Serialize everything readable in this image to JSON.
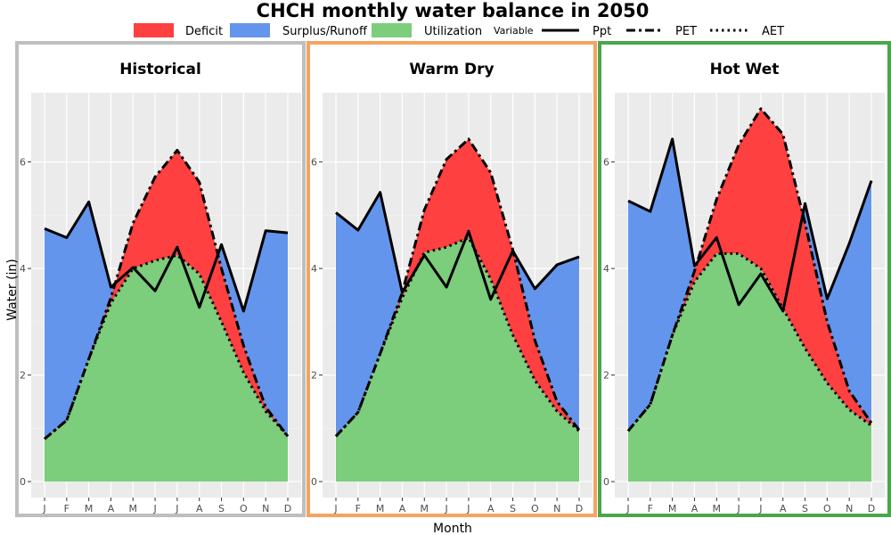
{
  "chart_data": {
    "type": "area",
    "title": "CHCH monthly water balance in 2050",
    "xlabel": "Month",
    "ylabel": "Water (in)",
    "ylim": [
      -0.3,
      7.3
    ],
    "yticks": [
      0,
      2,
      4,
      6
    ],
    "months": [
      "J",
      "F",
      "M",
      "A",
      "M",
      "J",
      "J",
      "A",
      "S",
      "O",
      "N",
      "D"
    ],
    "legend": {
      "fills": [
        {
          "label": "Deficit",
          "color": "#ff4040"
        },
        {
          "label": "Surplus/Runoff",
          "color": "#6495ed"
        },
        {
          "label": "Utilization",
          "color": "#7ccd7c"
        }
      ],
      "variable_title": "Variable",
      "lines": [
        {
          "label": "Ppt",
          "dash": "solid"
        },
        {
          "label": "PET",
          "dash": "dashdot"
        },
        {
          "label": "AET",
          "dash": "dotted"
        }
      ]
    },
    "panels": [
      {
        "name": "Historical",
        "border_color": "#bebebe",
        "ppt": [
          4.75,
          4.58,
          5.25,
          3.65,
          4.02,
          3.58,
          4.4,
          3.27,
          4.45,
          3.2,
          4.71,
          4.67
        ],
        "pet": [
          0.8,
          1.15,
          2.3,
          3.45,
          4.85,
          5.72,
          6.22,
          5.62,
          4.0,
          2.55,
          1.4,
          0.85
        ],
        "aet": [
          0.8,
          1.15,
          2.3,
          3.35,
          4.0,
          4.15,
          4.25,
          3.9,
          3.0,
          2.05,
          1.32,
          0.85
        ]
      },
      {
        "name": "Warm Dry",
        "border_color": "#f4a460",
        "ppt": [
          5.05,
          4.72,
          5.43,
          3.55,
          4.25,
          3.65,
          4.7,
          3.42,
          4.33,
          3.62,
          4.07,
          4.22
        ],
        "pet": [
          0.85,
          1.3,
          2.4,
          3.55,
          5.1,
          6.05,
          6.43,
          5.8,
          4.35,
          2.65,
          1.5,
          0.97
        ],
        "aet": [
          0.85,
          1.3,
          2.4,
          3.45,
          4.3,
          4.4,
          4.58,
          3.8,
          2.75,
          1.9,
          1.32,
          0.95
        ]
      },
      {
        "name": "Hot Wet",
        "border_color": "#4aa64a",
        "ppt": [
          5.27,
          5.07,
          6.43,
          4.05,
          4.58,
          3.32,
          3.9,
          3.2,
          5.22,
          3.43,
          4.47,
          5.65
        ],
        "pet": [
          0.95,
          1.45,
          2.75,
          3.95,
          5.3,
          6.32,
          7.0,
          6.52,
          4.85,
          3.0,
          1.7,
          1.1
        ],
        "aet": [
          0.95,
          1.45,
          2.75,
          3.75,
          4.28,
          4.28,
          4.0,
          3.25,
          2.5,
          1.85,
          1.35,
          1.05
        ]
      }
    ]
  }
}
